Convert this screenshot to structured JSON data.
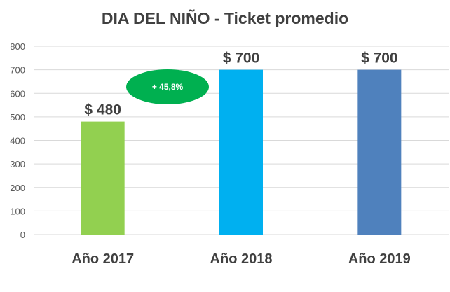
{
  "chart_data": {
    "type": "bar",
    "title": "DIA DEL NIÑO - Ticket promedio",
    "categories": [
      "Año 2017",
      "Año 2018",
      "Año 2019"
    ],
    "values": [
      480,
      700,
      700
    ],
    "data_labels": [
      "$ 480",
      "$ 700",
      "$ 700"
    ],
    "bar_colors": [
      "#92d050",
      "#00b0f0",
      "#4f81bd"
    ],
    "ylim": [
      0,
      800
    ],
    "yticks": [
      0,
      100,
      200,
      300,
      400,
      500,
      600,
      700,
      800
    ],
    "grid": true,
    "xlabel": "",
    "ylabel": "",
    "annotation": {
      "text": "+ 45,8%",
      "color": "#00b050"
    }
  }
}
